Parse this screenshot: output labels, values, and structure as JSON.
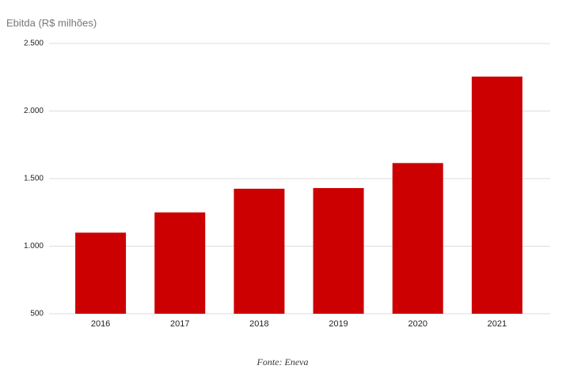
{
  "chart_data": {
    "type": "bar",
    "title": "Ebitda (R$ milhões)",
    "categories": [
      "2016",
      "2017",
      "2018",
      "2019",
      "2020",
      "2021"
    ],
    "values": [
      1100,
      1250,
      1425,
      1430,
      1615,
      2255
    ],
    "color": "#cc0000",
    "ylim": [
      500,
      2500
    ],
    "yticks": [
      500,
      {
        "value": 1000,
        "label": "1.000"
      },
      {
        "value": 1500,
        "label": "1.500"
      },
      {
        "value": 2000,
        "label": "2.000"
      },
      {
        "value": 2500,
        "label": "2.500"
      }
    ],
    "grid": true,
    "source": "Fonte: Eneva"
  }
}
